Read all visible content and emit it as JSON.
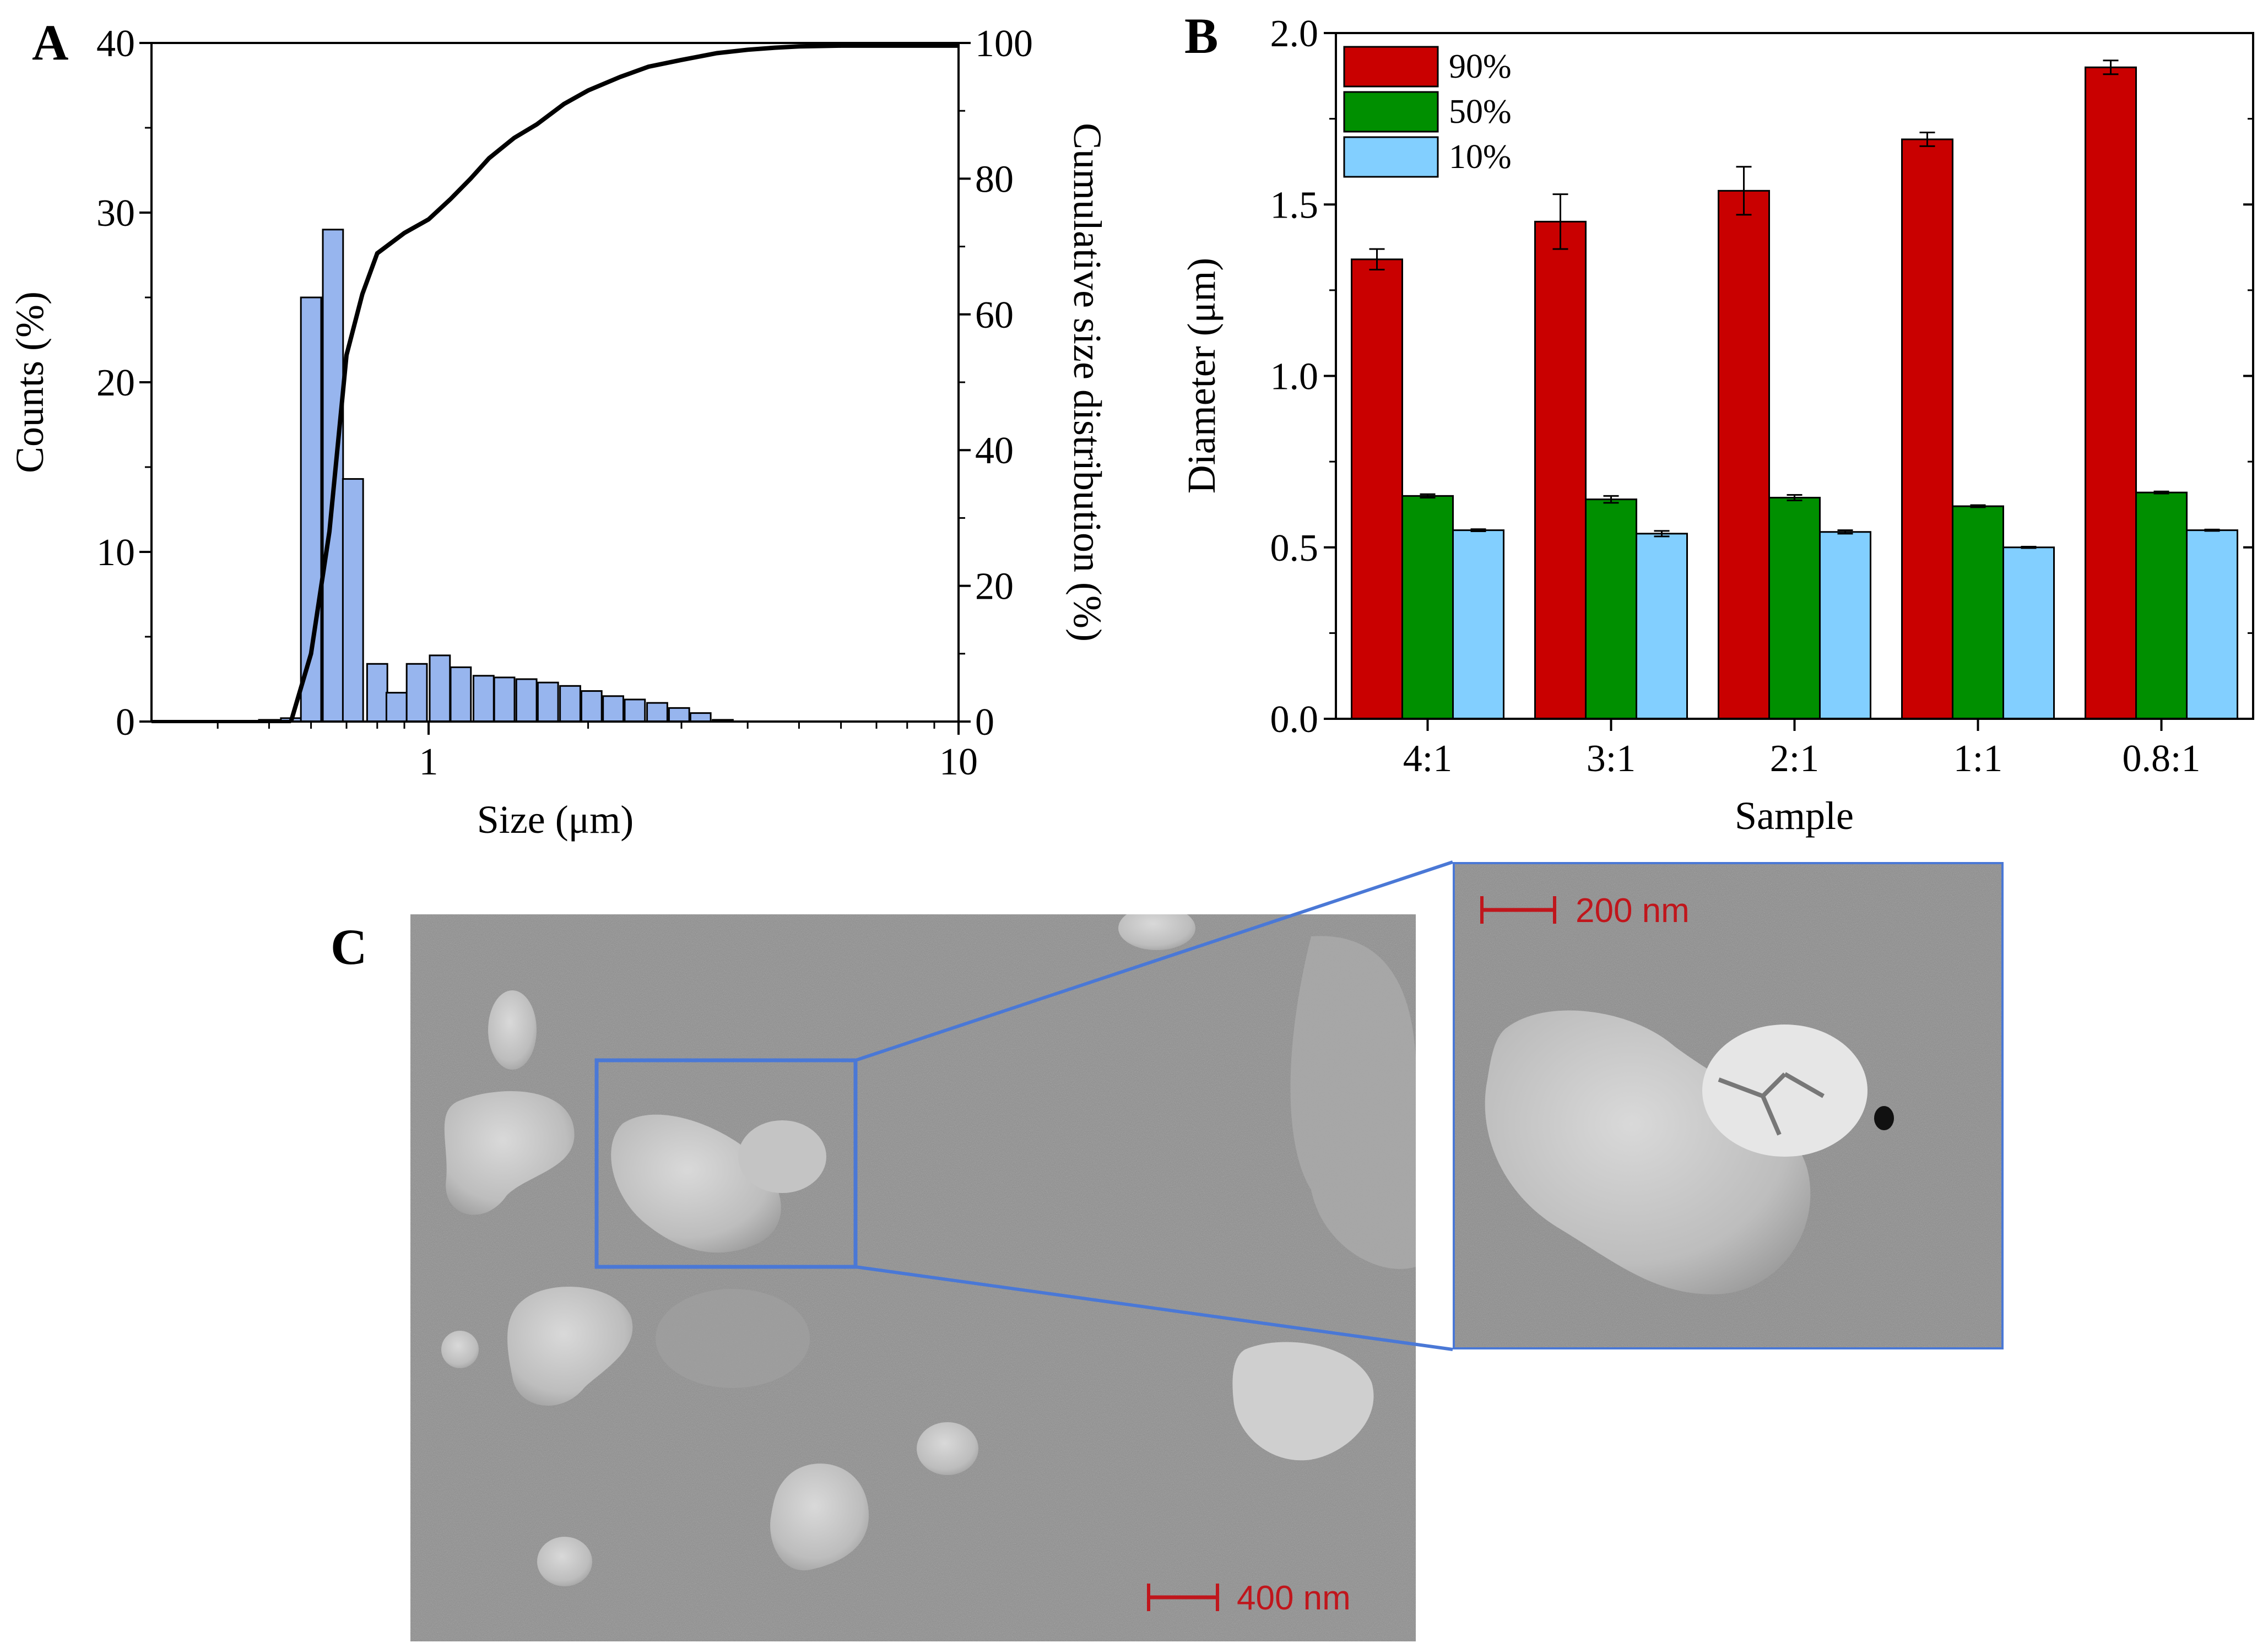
{
  "chart_data": [
    {
      "panel": "A",
      "type": "bar",
      "xscale": "log",
      "xlabel": "Size (μm)",
      "ylabel": "Counts (%)",
      "y2label": "Cumulative size distribution (%)",
      "xlim": [
        0.3,
        10
      ],
      "ylim": [
        0,
        40
      ],
      "y2lim": [
        0,
        100
      ],
      "xticks": [
        1,
        10
      ],
      "xtick_labels": [
        "1",
        "10"
      ],
      "yticks": [
        0,
        10,
        20,
        30,
        40
      ],
      "y2ticks": [
        0,
        20,
        40,
        60,
        80,
        100
      ],
      "series": [
        {
          "name": "Counts",
          "kind": "bar",
          "color": "#97b5ee",
          "x": [
            0.5,
            0.55,
            0.6,
            0.66,
            0.72,
            0.8,
            0.87,
            0.95,
            1.05,
            1.15,
            1.27,
            1.39,
            1.53,
            1.68,
            1.85,
            2.03,
            2.23,
            2.45,
            2.7,
            2.97,
            3.26,
            3.59,
            3.95,
            4.34,
            4.77
          ],
          "values": [
            0.1,
            0.2,
            25.0,
            29.0,
            14.3,
            3.4,
            1.7,
            3.4,
            3.9,
            3.2,
            2.7,
            2.6,
            2.5,
            2.3,
            2.1,
            1.8,
            1.5,
            1.3,
            1.1,
            0.8,
            0.5,
            0.1,
            0.0,
            0.0,
            0.0
          ]
        },
        {
          "name": "Cumulative size distribution",
          "kind": "line",
          "color": "#000000",
          "x": [
            0.55,
            0.6,
            0.65,
            0.7,
            0.75,
            0.8,
            0.9,
            1.0,
            1.1,
            1.2,
            1.3,
            1.45,
            1.6,
            1.8,
            2.0,
            2.3,
            2.6,
            3.0,
            3.5,
            4.0,
            4.5,
            5.0,
            6.0,
            8.0,
            10.0
          ],
          "values": [
            0,
            10,
            28,
            54,
            63,
            69,
            72,
            74,
            77,
            80,
            83,
            86,
            88,
            91,
            93,
            95,
            96.5,
            97.5,
            98.5,
            99,
            99.3,
            99.5,
            99.6,
            99.6,
            99.6
          ]
        }
      ]
    },
    {
      "panel": "B",
      "type": "bar",
      "xlabel": "Sample",
      "ylabel": "Diameter (μm)",
      "ylim": [
        0,
        2.0
      ],
      "yticks": [
        0.0,
        0.5,
        1.0,
        1.5,
        2.0
      ],
      "ytick_labels": [
        "0.0",
        "0.5",
        "1.0",
        "1.5",
        "2.0"
      ],
      "categories": [
        "4:1",
        "3:1",
        "2:1",
        "1:1",
        "0.8:1"
      ],
      "legend_position": "top-left",
      "series": [
        {
          "name": "90%",
          "color": "#c90000",
          "values": [
            1.34,
            1.45,
            1.54,
            1.69,
            1.9
          ],
          "errors": [
            0.03,
            0.08,
            0.07,
            0.02,
            0.02
          ]
        },
        {
          "name": "50%",
          "color": "#008f00",
          "values": [
            0.65,
            0.64,
            0.645,
            0.62,
            0.66
          ],
          "errors": [
            0.005,
            0.01,
            0.008,
            0.003,
            0.003
          ]
        },
        {
          "name": "10%",
          "color": "#82cfff",
          "values": [
            0.55,
            0.54,
            0.545,
            0.5,
            0.55
          ],
          "errors": [
            0.003,
            0.008,
            0.005,
            0.002,
            0.002
          ]
        }
      ]
    }
  ],
  "panel_c": {
    "letter": "C",
    "scale_bar_main": "400 nm",
    "scale_bar_zoom": "200 nm"
  }
}
